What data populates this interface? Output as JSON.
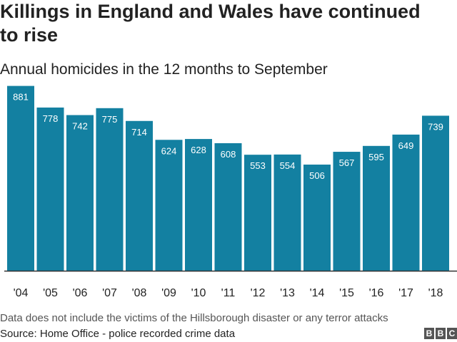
{
  "title": "Killings in England and Wales have continued\nto rise",
  "subtitle": "Annual homicides in the 12 months to September",
  "footnote": "Data does not include the victims of the Hillsborough disaster or any terror attacks",
  "source": "Source: Home Office - police recorded crime data",
  "logo": [
    "B",
    "B",
    "C"
  ],
  "colors": {
    "bar": "#1380A1",
    "axis": "#333333"
  },
  "chart_data": {
    "type": "bar",
    "categories": [
      "'04",
      "'05",
      "'06",
      "'07",
      "'08",
      "'09",
      "'10",
      "'11",
      "'12",
      "'13",
      "'14",
      "'15",
      "'16",
      "'17",
      "'18"
    ],
    "values": [
      881,
      778,
      742,
      775,
      714,
      624,
      628,
      608,
      553,
      554,
      506,
      567,
      595,
      649,
      739
    ],
    "title": "Killings in England and Wales have continued to rise",
    "subtitle": "Annual homicides in the 12 months to September",
    "xlabel": "",
    "ylabel": "",
    "ylim": [
      0,
      900
    ],
    "grid": false,
    "data_labels": true
  }
}
